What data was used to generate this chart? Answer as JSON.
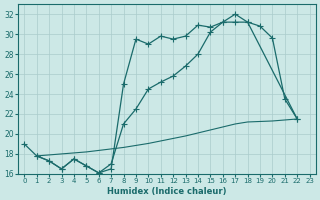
{
  "xlabel": "Humidex (Indice chaleur)",
  "xlim_min": -0.5,
  "xlim_max": 23.5,
  "ylim_min": 16,
  "ylim_max": 33,
  "yticks": [
    16,
    18,
    20,
    22,
    24,
    26,
    28,
    30,
    32
  ],
  "xticks": [
    0,
    1,
    2,
    3,
    4,
    5,
    6,
    7,
    8,
    9,
    10,
    11,
    12,
    13,
    14,
    15,
    16,
    17,
    18,
    19,
    20,
    21,
    22,
    23
  ],
  "bg_color": "#cce8e6",
  "line_color": "#1a6b6b",
  "grid_color": "#aacccc",
  "curve1_x": [
    0,
    1,
    2,
    3,
    4,
    5,
    6,
    7,
    8,
    9,
    10,
    11,
    12,
    13,
    14,
    15,
    16,
    17,
    18,
    19,
    20,
    21,
    22
  ],
  "curve1_y": [
    19.0,
    17.8,
    17.3,
    16.5,
    17.5,
    16.8,
    16.1,
    16.5,
    25.0,
    29.5,
    29.0,
    29.8,
    29.5,
    29.8,
    30.9,
    30.7,
    31.2,
    32.0,
    31.2,
    30.8,
    29.6,
    23.5,
    21.5
  ],
  "curve2_x": [
    1,
    2,
    3,
    4,
    5,
    6,
    7,
    8,
    9,
    10,
    11,
    12,
    13,
    14,
    15,
    16,
    17,
    18,
    22
  ],
  "curve2_y": [
    17.8,
    17.3,
    16.5,
    17.5,
    16.8,
    16.1,
    17.0,
    21.0,
    22.5,
    24.5,
    25.2,
    25.8,
    26.8,
    28.0,
    30.2,
    31.2,
    31.2,
    31.2,
    21.5
  ],
  "curve3_x": [
    1,
    2,
    3,
    4,
    5,
    6,
    7,
    8,
    9,
    10,
    11,
    12,
    13,
    14,
    15,
    16,
    17,
    18,
    19,
    20,
    21,
    22
  ],
  "curve3_y": [
    17.8,
    17.9,
    18.0,
    18.1,
    18.2,
    18.35,
    18.5,
    18.65,
    18.85,
    19.05,
    19.3,
    19.55,
    19.8,
    20.1,
    20.4,
    20.7,
    21.0,
    21.2,
    21.25,
    21.3,
    21.4,
    21.5
  ]
}
